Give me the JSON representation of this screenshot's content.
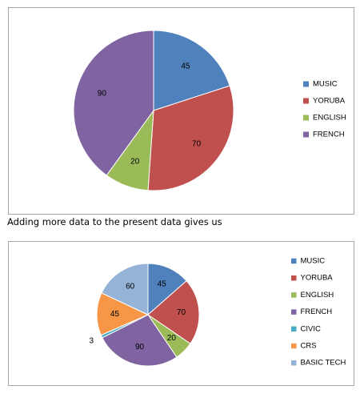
{
  "caption": "Adding more data to the present data gives us",
  "chart_data": [
    {
      "type": "pie",
      "categories": [
        "MUSIC",
        "YORUBA",
        "ENGLISH",
        "FRENCH"
      ],
      "values": [
        45,
        70,
        20,
        90
      ],
      "colors": [
        "#4f81bd",
        "#c0504d",
        "#9bbb59",
        "#8064a2"
      ],
      "data_labels": [
        "45",
        "70",
        "20",
        "90"
      ],
      "legend_position": "right"
    },
    {
      "type": "pie",
      "categories": [
        "MUSIC",
        "YORUBA",
        "ENGLISH",
        "FRENCH",
        "CIVIC",
        "CRS",
        "BASIC TECH"
      ],
      "values": [
        45,
        70,
        20,
        90,
        3,
        45,
        60
      ],
      "colors": [
        "#4f81bd",
        "#c0504d",
        "#9bbb59",
        "#8064a2",
        "#4bacc6",
        "#f79646",
        "#95b3d7"
      ],
      "data_labels": [
        "45",
        "70",
        "20",
        "90",
        "3",
        "45",
        "60"
      ],
      "legend_position": "right"
    }
  ]
}
